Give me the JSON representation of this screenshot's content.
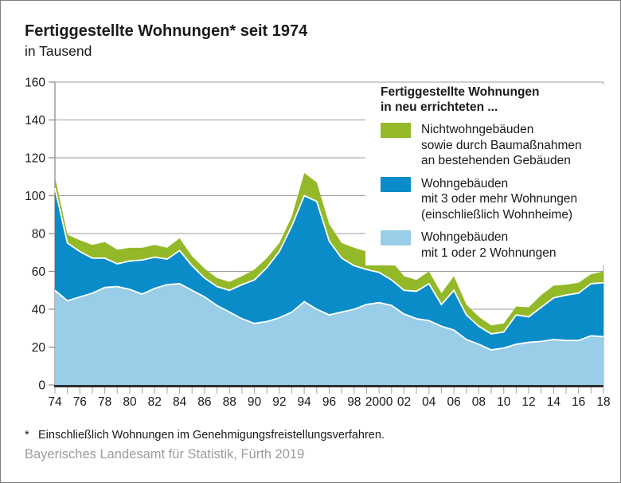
{
  "header": {
    "title": "Fertiggestellte Wohnungen* seit 1974",
    "subtitle": "in Tausend"
  },
  "legend": {
    "title_line1": "Fertiggestellte Wohnungen",
    "title_line2": "in neu errichteten ...",
    "items": [
      {
        "color": "#93b929",
        "lines": [
          "Nichtwohngebäuden",
          "sowie durch Baumaßnahmen",
          "an bestehenden Gebäuden"
        ]
      },
      {
        "color": "#0a8cc9",
        "lines": [
          "Wohngebäuden",
          "mit 3 oder mehr Wohnungen",
          "(einschließlich Wohnheime)"
        ]
      },
      {
        "color": "#99cde8",
        "lines": [
          "Wohngebäuden",
          "mit 1 oder 2 Wohnungen"
        ]
      }
    ]
  },
  "footnote": {
    "marker": "*",
    "text": "Einschließlich Wohnungen im Genehmigungsfreistellungsverfahren."
  },
  "source": "Bayerisches Landesamt für Statistik, Fürth 2019",
  "colors": {
    "grid": "#9e9e9e",
    "axis_gray": "#8c8c8c",
    "axis_dark": "#2e2e2e",
    "x_tick": "#b4b4b4",
    "text": "#1a1a1a",
    "separator": "#ffffff"
  },
  "chart_data": {
    "type": "area",
    "stacked": true,
    "title": "Fertiggestellte Wohnungen* seit 1974",
    "subtitle": "in Tausend",
    "unit": "Tausend (thousands of completed dwellings)",
    "x": [
      1974,
      1975,
      1976,
      1977,
      1978,
      1979,
      1980,
      1981,
      1982,
      1983,
      1984,
      1985,
      1986,
      1987,
      1988,
      1989,
      1990,
      1991,
      1992,
      1993,
      1994,
      1995,
      1996,
      1997,
      1998,
      1999,
      2000,
      2001,
      2002,
      2003,
      2004,
      2005,
      2006,
      2007,
      2008,
      2009,
      2010,
      2011,
      2012,
      2013,
      2014,
      2015,
      2016,
      2017,
      2018
    ],
    "x_tick_labels": [
      "74",
      "76",
      "78",
      "80",
      "82",
      "84",
      "86",
      "88",
      "90",
      "92",
      "94",
      "96",
      "98",
      "2000",
      "02",
      "04",
      "06",
      "08",
      "10",
      "12",
      "14",
      "16",
      "18"
    ],
    "ylim": [
      0,
      160
    ],
    "y_ticks": [
      0,
      20,
      40,
      60,
      80,
      100,
      120,
      140,
      160
    ],
    "grid": true,
    "legend_position": "top-right",
    "series": [
      {
        "name": "Wohngebäuden mit 1 oder 2 Wohnungen",
        "color": "#99cde8",
        "values": [
          50,
          44.5,
          46.5,
          48.5,
          51.5,
          52,
          50.5,
          48,
          51,
          53,
          53.5,
          50,
          46.5,
          42,
          38.5,
          35,
          32.5,
          33.5,
          35.5,
          38.5,
          44,
          40,
          37,
          38.5,
          40,
          42.5,
          43.5,
          42,
          37.5,
          35,
          34,
          31,
          29,
          24,
          21.5,
          18.5,
          19.5,
          21.5,
          22.5,
          23,
          24,
          23.5,
          23.5,
          26,
          25.5
        ]
      },
      {
        "name": "Wohngebäuden mit 3 oder mehr Wohnungen (einschließlich Wohnheime)",
        "color": "#0a8cc9",
        "values": [
          54,
          30.5,
          24,
          18.5,
          15.5,
          12,
          15,
          18,
          16.5,
          13.5,
          17.5,
          13,
          10,
          10,
          11.5,
          18,
          23,
          28.5,
          35,
          45.5,
          56,
          57,
          39,
          28.5,
          23,
          18.5,
          16,
          13.5,
          12.5,
          14.5,
          19.5,
          11.5,
          21,
          13,
          9.5,
          8.5,
          8.5,
          15.5,
          13.5,
          18,
          22,
          24,
          25,
          27.5,
          28.5
        ]
      },
      {
        "name": "Nichtwohngebäuden sowie durch Baumaßnahmen an bestehenden Gebäuden",
        "color": "#93b929",
        "values": [
          6,
          4.5,
          6,
          7,
          8.5,
          7.5,
          7,
          6.5,
          6.5,
          6,
          6.5,
          5,
          5,
          4.5,
          4.5,
          4.5,
          5.5,
          5,
          4.5,
          5,
          12,
          10,
          9,
          8,
          9.5,
          9.5,
          10,
          10,
          7.5,
          6,
          6.5,
          6,
          7.5,
          5.5,
          5,
          4.5,
          4.5,
          4.5,
          5,
          6.5,
          6.5,
          5.5,
          5.5,
          5,
          6
        ]
      }
    ]
  }
}
